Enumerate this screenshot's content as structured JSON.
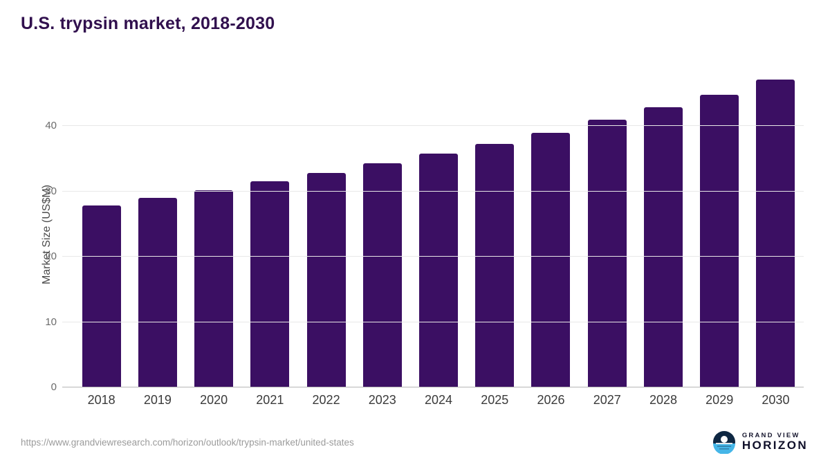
{
  "title": "U.S. trypsin market, 2018-2030",
  "chart_data": {
    "type": "bar",
    "categories": [
      "2018",
      "2019",
      "2020",
      "2021",
      "2022",
      "2023",
      "2024",
      "2025",
      "2026",
      "2027",
      "2028",
      "2029",
      "2030"
    ],
    "values": [
      27.8,
      29.0,
      30.2,
      31.5,
      32.8,
      34.3,
      35.8,
      37.3,
      39.0,
      41.0,
      42.9,
      44.8,
      47.1
    ],
    "title": "U.S. trypsin market, 2018-2030",
    "xlabel": "",
    "ylabel": "Market Size (US$M)",
    "ylim": [
      0,
      48.7
    ],
    "yticks": [
      0,
      10,
      20,
      30,
      40
    ],
    "grid": true,
    "legend": "none",
    "bar_color": "#3b0f63"
  },
  "colors": {
    "bar": "#3b0f63",
    "title": "#31104e",
    "grid": "#e8e8e8",
    "baseline": "#b5b5b5",
    "logo_blue": "#45b6e8",
    "logo_navy": "#0e2742"
  },
  "footer": {
    "source_url": "https://www.grandviewresearch.com/horizon/outlook/trypsin-market/united-states",
    "logo_top": "GRAND VIEW",
    "logo_bottom": "HORIZON"
  }
}
